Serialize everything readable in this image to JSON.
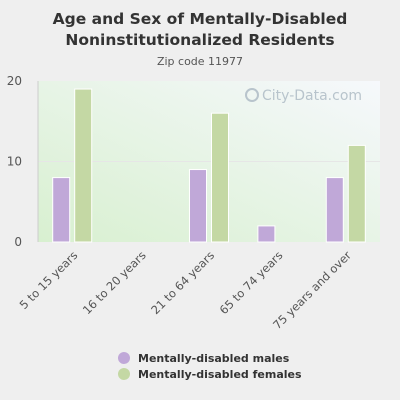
{
  "chart_data": {
    "type": "bar",
    "title": "Age and Sex of Mentally-Disabled Noninstitutionalized Residents",
    "subtitle": "Zip code 11977",
    "categories": [
      "5 to 15 years",
      "16 to 20 years",
      "21 to 64 years",
      "65 to 74 years",
      "75 years and over"
    ],
    "series": [
      {
        "name": "Mentally-disabled males",
        "color": "#c0a8d8",
        "values": [
          8,
          0,
          9,
          2,
          8
        ]
      },
      {
        "name": "Mentally-disabled females",
        "color": "#c4d8a4",
        "values": [
          19,
          0,
          16,
          0,
          12
        ]
      }
    ],
    "ylim": [
      0,
      20
    ],
    "yticks": [
      0,
      10,
      20
    ],
    "grid": true,
    "legend_position": "bottom",
    "watermark": "City-Data.com"
  }
}
